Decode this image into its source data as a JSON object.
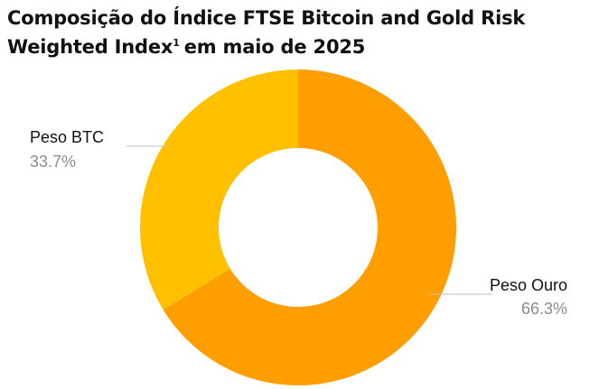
{
  "title": {
    "main": "Composição do Índice FTSE Bitcoin and Gold Risk Weighted Index",
    "footnote": "1",
    "suffix": "em maio de 2025"
  },
  "chart_data": {
    "type": "pie",
    "variant": "donut",
    "title": "Composição do Índice FTSE Bitcoin and Gold Risk Weighted Index¹ em maio de 2025",
    "start_angle_deg": 0,
    "direction": "clockwise",
    "legend": "none",
    "slices": [
      {
        "name": "Peso Ouro",
        "value": 66.3,
        "label": "66.3%",
        "color": "#FF9E00"
      },
      {
        "name": "Peso BTC",
        "value": 33.7,
        "label": "33.7%",
        "color": "#FFC000"
      }
    ],
    "leader_line_color": "#bfbfbf"
  }
}
